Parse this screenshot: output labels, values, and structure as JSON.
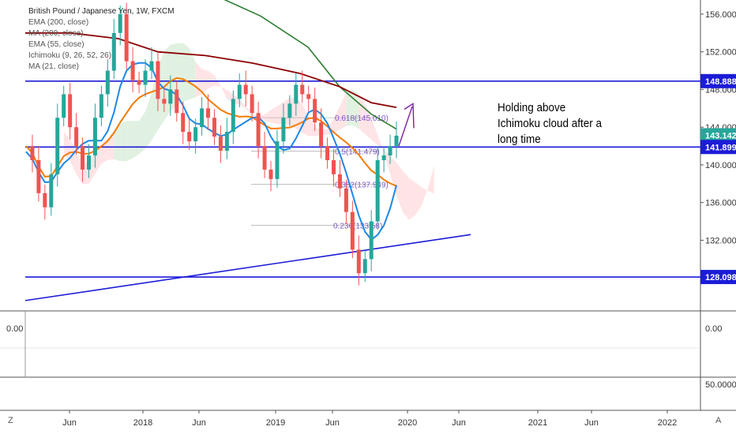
{
  "chart_data": {
    "type": "candlestick",
    "title": "British Pound / Japanese Yen, 1W, FXCM",
    "indicators": [
      "EMA (200, close)",
      "MA (200, close)",
      "EMA (55, close)",
      "Ichimoku (9, 26, 52, 26)",
      "MA (21, close)"
    ],
    "y_ticks": [
      "156.000",
      "152.000",
      "148.000",
      "144.000",
      "140.000",
      "136.000",
      "132.000"
    ],
    "ylim": [
      124.5,
      157.5
    ],
    "x_ticks": [
      "Jun",
      "2018",
      "Jun",
      "2019",
      "Jun",
      "2020",
      "Jun",
      "2021",
      "Jun",
      "2022"
    ],
    "price_labels": [
      {
        "value": "148.888",
        "color": "#1c1cd8"
      },
      {
        "value": "143.142",
        "color": "#26a69a"
      },
      {
        "value": "141.899",
        "color": "#1c1cd8"
      },
      {
        "value": "128.098",
        "color": "#1c1cd8"
      }
    ],
    "horizontal_levels": [
      148.888,
      141.899,
      128.098
    ],
    "fibonacci": [
      {
        "label": "0.618(145.010)",
        "value": 145.01
      },
      {
        "label": "0.5(141.479)",
        "value": 141.479
      },
      {
        "label": "0.382(137.949)",
        "value": 137.949
      },
      {
        "label": "0.236(133.58)",
        "value": 133.58
      }
    ],
    "annotation": [
      "Holding above",
      "Ichimoku cloud after a",
      "long time"
    ],
    "lower_pane": {
      "left_tick": "0.00",
      "right_ticks": [
        "0.00",
        "50.0000"
      ]
    },
    "corner_labels": [
      "Z",
      "A"
    ],
    "price_path": [
      142,
      140.5,
      137,
      135.5,
      139,
      145,
      147.5,
      144,
      142,
      139.5,
      141,
      145,
      147.5,
      150,
      154,
      156,
      151,
      149,
      148.5,
      150,
      151,
      147,
      146.5,
      148,
      145.5,
      143.5,
      142.5,
      144,
      146,
      145,
      143,
      141.5,
      143.5,
      147,
      148.5,
      147.5,
      145.5,
      142,
      139.5,
      138.5,
      142.5,
      145,
      146.5,
      148.5,
      147.5,
      147,
      144.5,
      142,
      140.5,
      139,
      137.5,
      135,
      131,
      128.5,
      130,
      134,
      140.5,
      141,
      142,
      143.1
    ],
    "colors": {
      "up": "#26a69a",
      "down": "#ef5350",
      "ema200": "#2e7d32",
      "ma200": "#8b0000",
      "ema55": "#f57c00",
      "ma21": "#1e88e5",
      "cloud_bull": "#c8e6c9",
      "cloud_bear": "#ffcdd2",
      "level": "#1c1cd8"
    }
  }
}
